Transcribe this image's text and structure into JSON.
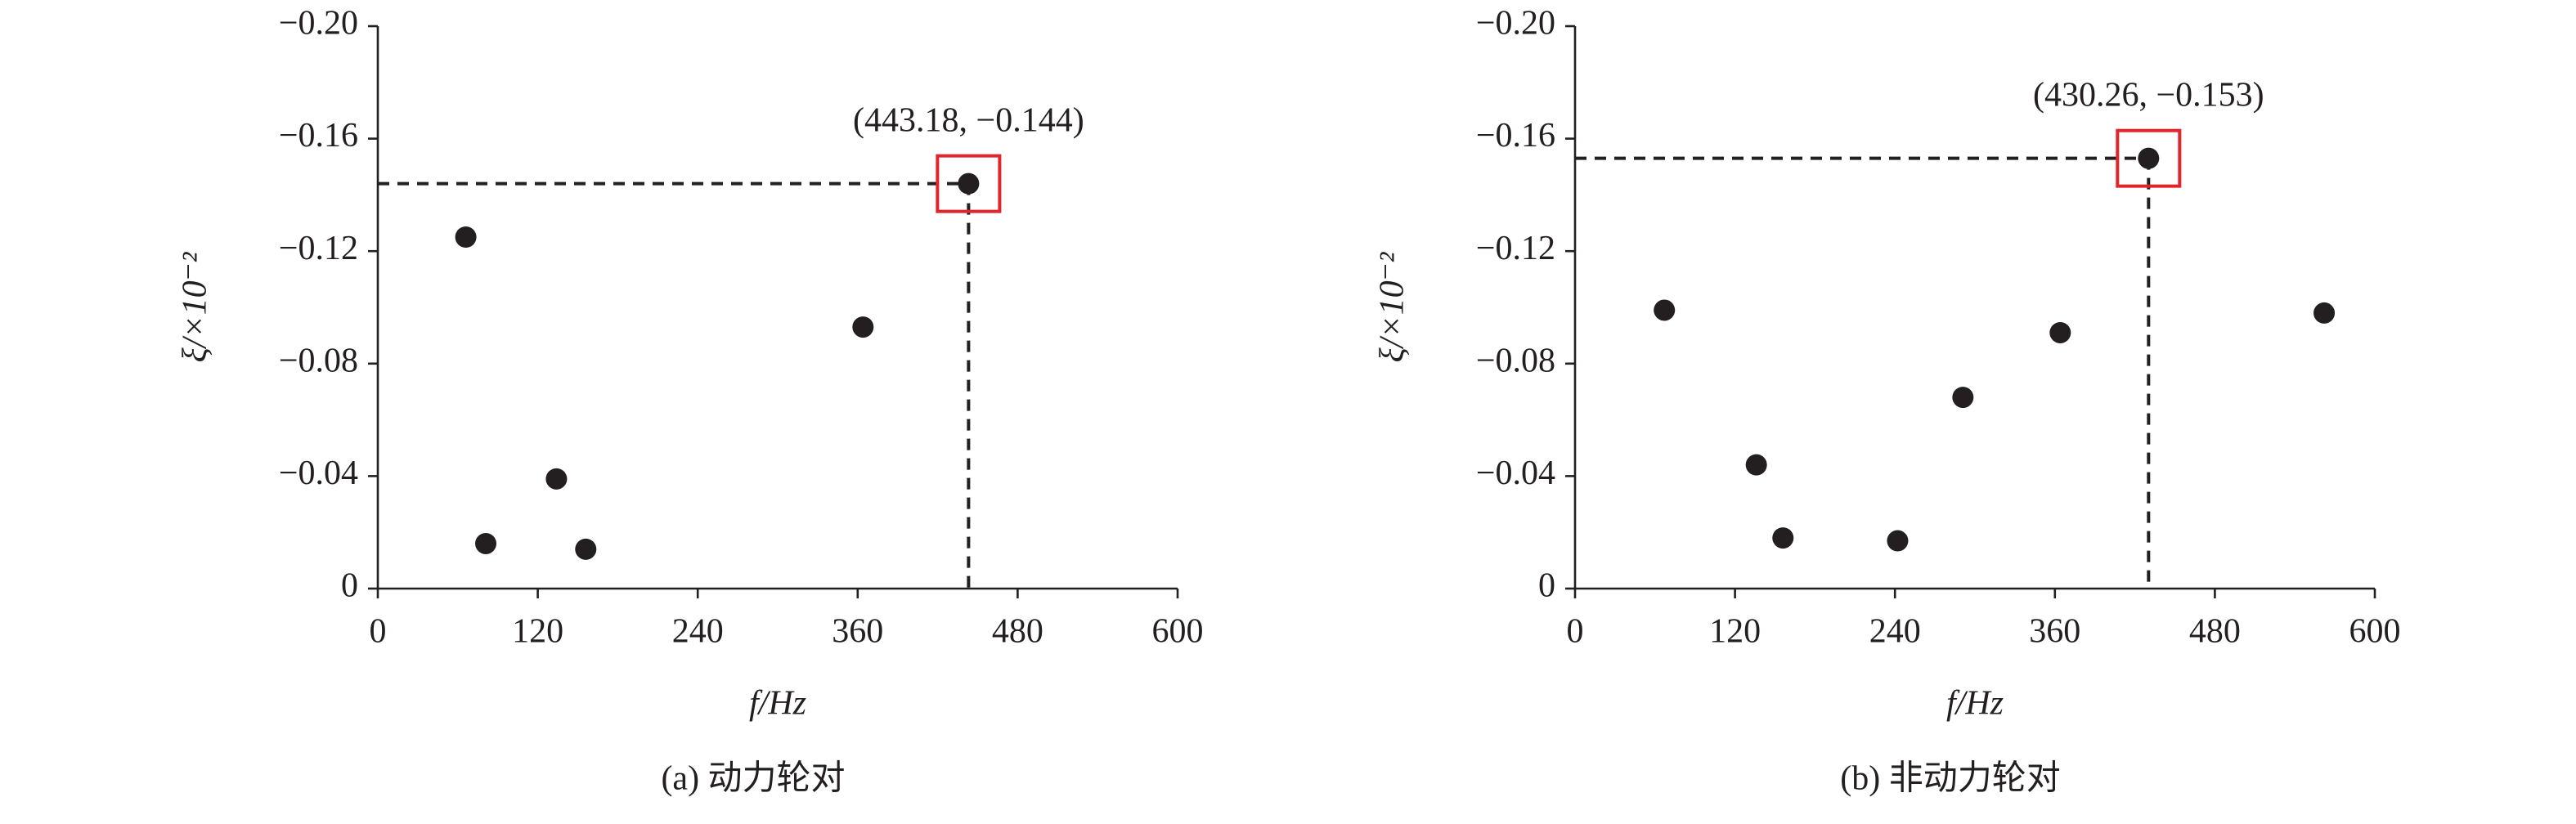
{
  "chart_data": [
    {
      "type": "scatter",
      "caption": "(a) 动力轮对",
      "xlabel": "f/Hz",
      "ylabel": "ξ/×10⁻²",
      "annotation": "(443.18, −0.144)",
      "color": "#231f20",
      "highlight_color": "#e0262b",
      "x": [
        66,
        81,
        134,
        156,
        364,
        443.18
      ],
      "values": [
        -0.125,
        -0.016,
        -0.039,
        -0.014,
        -0.093,
        -0.144
      ],
      "xlim": [
        0,
        600
      ],
      "xticks": [
        0,
        120,
        240,
        360,
        480,
        600
      ],
      "ylim": [
        0,
        -0.2
      ],
      "yticks": [
        {
          "value": -0.2,
          "label": "−0.20"
        },
        {
          "value": -0.16,
          "label": "−0.16"
        },
        {
          "value": -0.12,
          "label": "−0.12"
        },
        {
          "value": -0.08,
          "label": "−0.08"
        },
        {
          "value": -0.04,
          "label": "−0.04"
        },
        0
      ]
    },
    {
      "type": "scatter",
      "caption": "(b) 非动力轮对",
      "xlabel": "f/Hz",
      "ylabel": "ξ/×10⁻²",
      "annotation": "(430.26, −0.153)",
      "color": "#231f20",
      "highlight_color": "#e0262b",
      "x": [
        67,
        136,
        156,
        242,
        291,
        364,
        430.26,
        562
      ],
      "values": [
        -0.099,
        -0.044,
        -0.018,
        -0.017,
        -0.068,
        -0.091,
        -0.153,
        -0.098
      ],
      "xlim": [
        0,
        600
      ],
      "xticks": [
        0,
        120,
        240,
        360,
        480,
        600
      ],
      "ylim": [
        0,
        -0.2
      ],
      "yticks": [
        {
          "value": -0.2,
          "label": "−0.20"
        },
        {
          "value": -0.16,
          "label": "−0.16"
        },
        {
          "value": -0.12,
          "label": "−0.12"
        },
        {
          "value": -0.08,
          "label": "−0.08"
        },
        {
          "value": -0.04,
          "label": "−0.04"
        },
        0
      ]
    }
  ]
}
